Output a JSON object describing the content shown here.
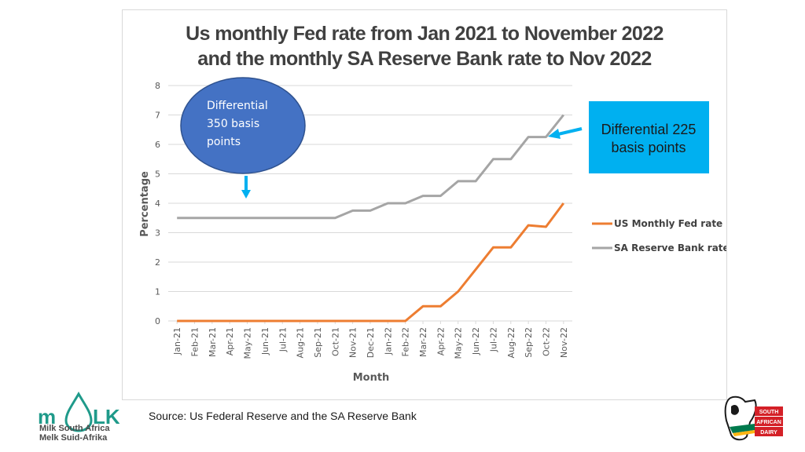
{
  "chart_data": {
    "type": "line",
    "title": [
      "Us monthly Fed rate from Jan 2021 to November 2022",
      "and the monthly SA Reserve Bank rate to Nov 2022"
    ],
    "xlabel": "Month",
    "ylabel": "Percentage",
    "ylim": [
      0,
      8
    ],
    "yticks": [
      "0",
      "1",
      "2",
      "3",
      "4",
      "5",
      "6",
      "7",
      "8"
    ],
    "grid": true,
    "legend_position": "right",
    "categories": [
      "Jan-21",
      "Feb-21",
      "Mar-21",
      "Apr-21",
      "May-21",
      "Jun-21",
      "Jul-21",
      "Aug-21",
      "Sep-21",
      "Oct-21",
      "Nov-21",
      "Dec-21",
      "Jan-22",
      "Feb-22",
      "Mar-22",
      "Apr-22",
      "May-22",
      "Jun-22",
      "Jul-22",
      "Aug-22",
      "Sep-22",
      "Oct-22",
      "Nov-22"
    ],
    "series": [
      {
        "name": "US Monthly Fed rate",
        "color": "#ed7d31",
        "values": [
          0,
          0,
          0,
          0,
          0,
          0,
          0,
          0,
          0,
          0,
          0,
          0,
          0,
          0,
          0.5,
          0.5,
          1.0,
          1.75,
          2.5,
          2.5,
          3.25,
          3.2,
          4.0
        ]
      },
      {
        "name": "SA Reserve Bank rate",
        "color": "#a5a5a5",
        "values": [
          3.5,
          3.5,
          3.5,
          3.5,
          3.5,
          3.5,
          3.5,
          3.5,
          3.5,
          3.5,
          3.75,
          3.75,
          4.0,
          4.0,
          4.25,
          4.25,
          4.75,
          4.75,
          5.5,
          5.5,
          6.25,
          6.25,
          7.0
        ]
      }
    ],
    "annotations": {
      "ellipse": {
        "lines": [
          "Differential",
          "350 basis",
          "points"
        ],
        "fill": "#4472c4",
        "stroke": "#2f528f"
      },
      "box": {
        "lines": [
          "Differential 225",
          "basis points"
        ],
        "fill": "#00b0f0"
      },
      "arrow_color": "#00b0f0"
    }
  },
  "source": "Source: Us Federal Reserve and the SA Reserve Bank",
  "logos": {
    "left": {
      "line1": "Milk South Africa",
      "line2": "Melk Suid-Afrika",
      "wordmark_left": "m",
      "wordmark_right": "LK",
      "color": "#1f9a8a"
    },
    "right": {
      "lines": [
        "SOUTH",
        "AFRICAN",
        "DAIRY"
      ],
      "color": "#d42027"
    }
  }
}
